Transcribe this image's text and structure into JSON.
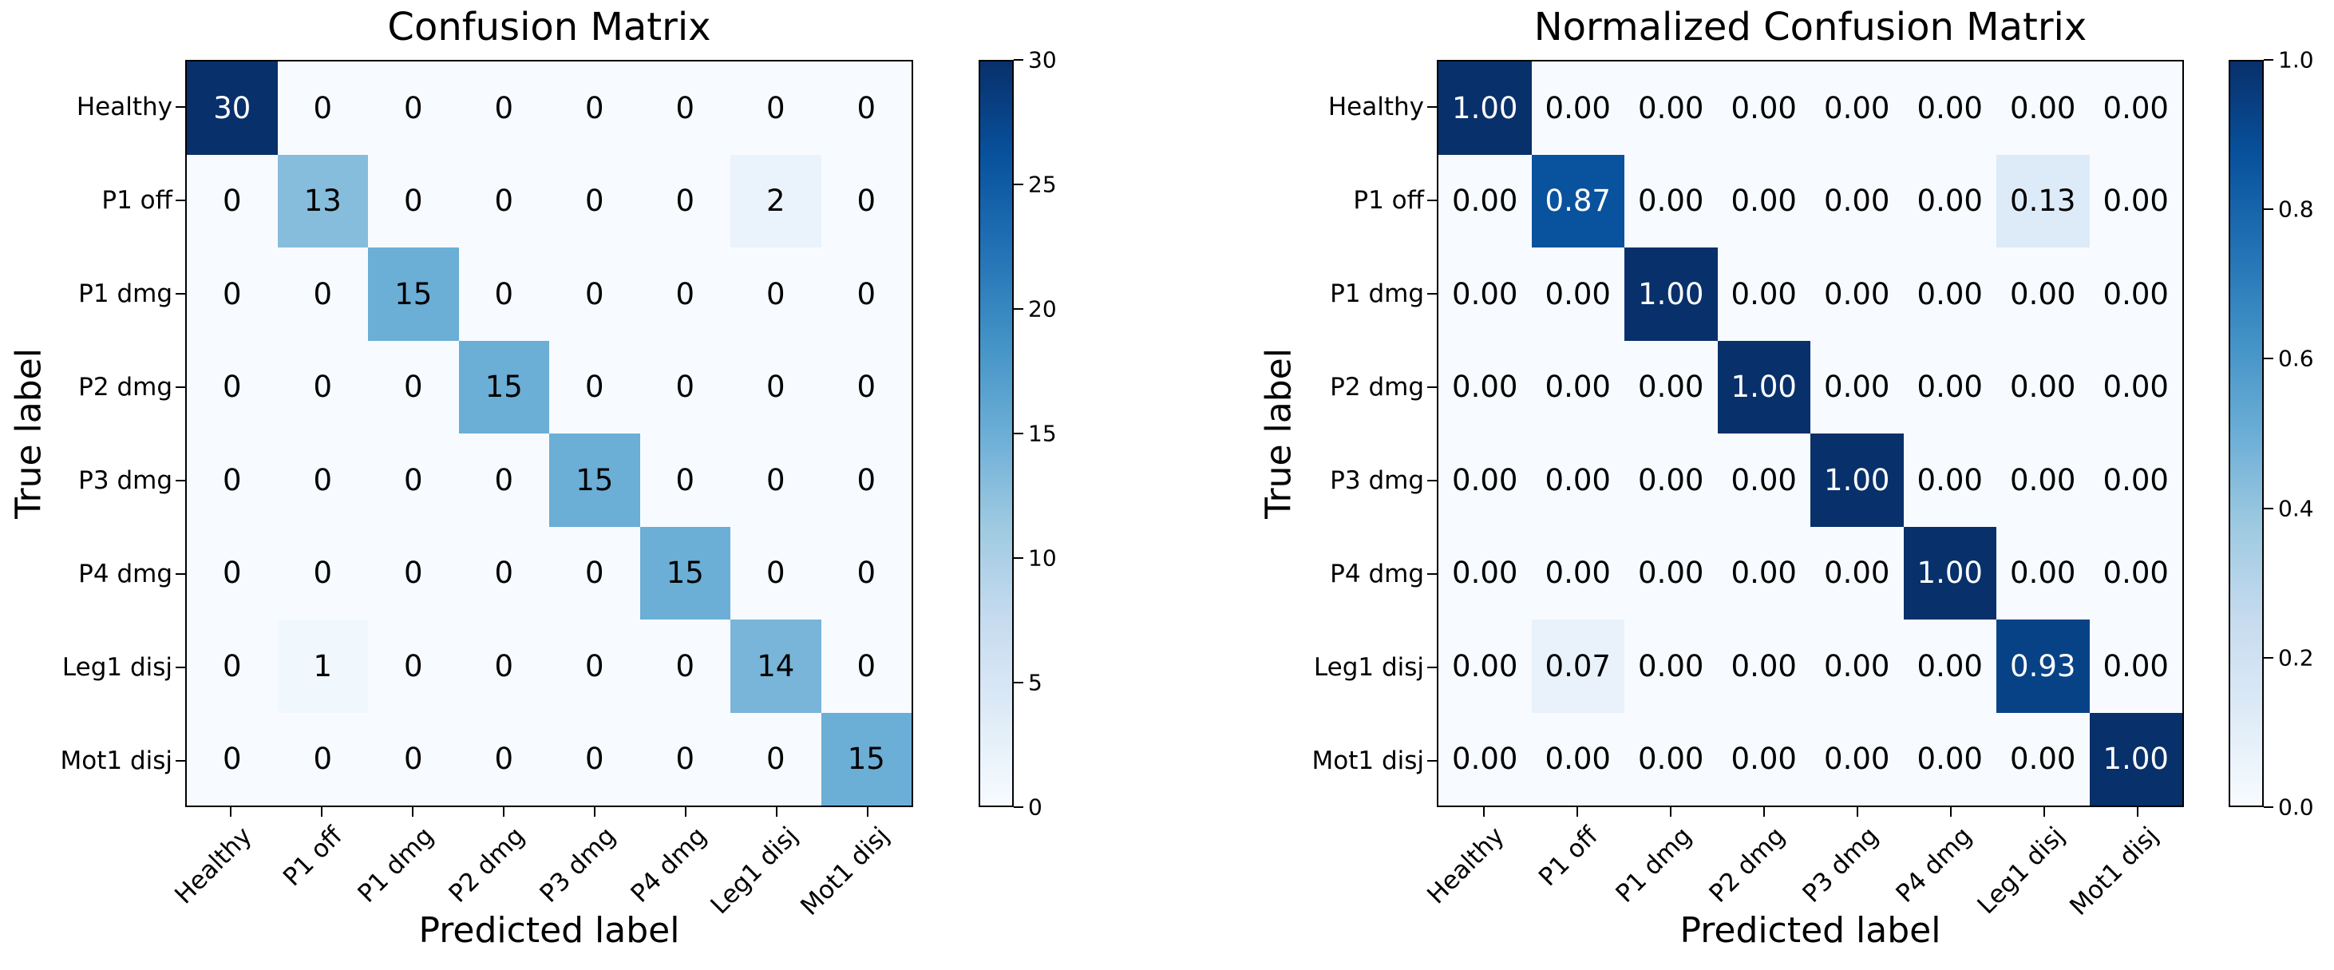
{
  "figure": {
    "background": "#ffffff"
  },
  "colors": {
    "colormap_name": "Blues",
    "colormap_anchors": [
      "#f7fbff",
      "#deebf7",
      "#c6dbef",
      "#9ecae1",
      "#6baed6",
      "#4292c6",
      "#2171b5",
      "#08519c",
      "#08306b"
    ],
    "cell_text_dark": "#000000",
    "cell_text_light": "#ffffff",
    "axis_color": "#000000"
  },
  "chart_data": [
    {
      "type": "heatmap",
      "title": "Confusion Matrix",
      "xlabel": "Predicted label",
      "ylabel": "True label",
      "row_labels": [
        "Healthy",
        "P1 off",
        "P1 dmg",
        "P2 dmg",
        "P3 dmg",
        "P4 dmg",
        "Leg1 disj",
        "Mot1 disj"
      ],
      "col_labels": [
        "Healthy",
        "P1 off",
        "P1 dmg",
        "P2 dmg",
        "P3 dmg",
        "P4 dmg",
        "Leg1 disj",
        "Mot1 disj"
      ],
      "matrix": [
        [
          30,
          0,
          0,
          0,
          0,
          0,
          0,
          0
        ],
        [
          0,
          13,
          0,
          0,
          0,
          0,
          2,
          0
        ],
        [
          0,
          0,
          15,
          0,
          0,
          0,
          0,
          0
        ],
        [
          0,
          0,
          0,
          15,
          0,
          0,
          0,
          0
        ],
        [
          0,
          0,
          0,
          0,
          15,
          0,
          0,
          0
        ],
        [
          0,
          0,
          0,
          0,
          0,
          15,
          0,
          0
        ],
        [
          0,
          1,
          0,
          0,
          0,
          0,
          14,
          0
        ],
        [
          0,
          0,
          0,
          0,
          0,
          0,
          0,
          15
        ]
      ],
      "vmin": 0,
      "vmax": 30,
      "value_format": "int",
      "colorbar_tick_labels": [
        "0",
        "5",
        "10",
        "15",
        "20",
        "25",
        "30"
      ],
      "colorbar_tick_values": [
        0,
        5,
        10,
        15,
        20,
        25,
        30
      ],
      "grid": false,
      "legend_position": "colorbar-right"
    },
    {
      "type": "heatmap",
      "title": "Normalized Confusion Matrix",
      "xlabel": "Predicted label",
      "ylabel": "True label",
      "row_labels": [
        "Healthy",
        "P1 off",
        "P1 dmg",
        "P2 dmg",
        "P3 dmg",
        "P4 dmg",
        "Leg1 disj",
        "Mot1 disj"
      ],
      "col_labels": [
        "Healthy",
        "P1 off",
        "P1 dmg",
        "P2 dmg",
        "P3 dmg",
        "P4 dmg",
        "Leg1 disj",
        "Mot1 disj"
      ],
      "matrix": [
        [
          1.0,
          0,
          0,
          0,
          0,
          0,
          0,
          0
        ],
        [
          0,
          0.87,
          0,
          0,
          0,
          0,
          0.13,
          0
        ],
        [
          0,
          0,
          1.0,
          0,
          0,
          0,
          0,
          0
        ],
        [
          0,
          0,
          0,
          1.0,
          0,
          0,
          0,
          0
        ],
        [
          0,
          0,
          0,
          0,
          1.0,
          0,
          0,
          0
        ],
        [
          0,
          0,
          0,
          0,
          0,
          1.0,
          0,
          0
        ],
        [
          0,
          0.07,
          0,
          0,
          0,
          0,
          0.93,
          0
        ],
        [
          0,
          0,
          0,
          0,
          0,
          0,
          0,
          1.0
        ]
      ],
      "vmin": 0.0,
      "vmax": 1.0,
      "value_format": "2f",
      "colorbar_tick_labels": [
        "0.0",
        "0.2",
        "0.4",
        "0.6",
        "0.8",
        "1.0"
      ],
      "colorbar_tick_values": [
        0,
        0.2,
        0.4,
        0.6,
        0.8,
        1.0
      ],
      "grid": false,
      "legend_position": "colorbar-right"
    }
  ]
}
